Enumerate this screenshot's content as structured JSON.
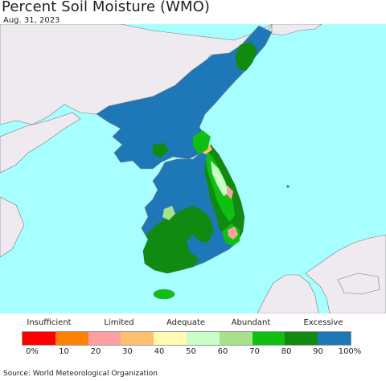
{
  "title": "Percent Soil Moisture (WMO)",
  "date": "Aug. 31, 2023",
  "source": "Source: World Meteorological Organization",
  "colors": {
    "sea": "#a8ffff",
    "other_land": "#eeeaf0",
    "border": "#7a7a7a"
  },
  "legend": {
    "categories": [
      "Insufficient",
      "Limited",
      "Adequate",
      "Abundant",
      "Excessive"
    ],
    "ticks": [
      "0%",
      "10",
      "20",
      "30",
      "40",
      "50",
      "60",
      "70",
      "80",
      "90",
      "100%"
    ],
    "colors": [
      "#ff0000",
      "#ff7f00",
      "#ffa0a0",
      "#ffc070",
      "#fffab0",
      "#c8ffc8",
      "#a8e08c",
      "#10c010",
      "#108a10",
      "#1e78b8"
    ]
  }
}
